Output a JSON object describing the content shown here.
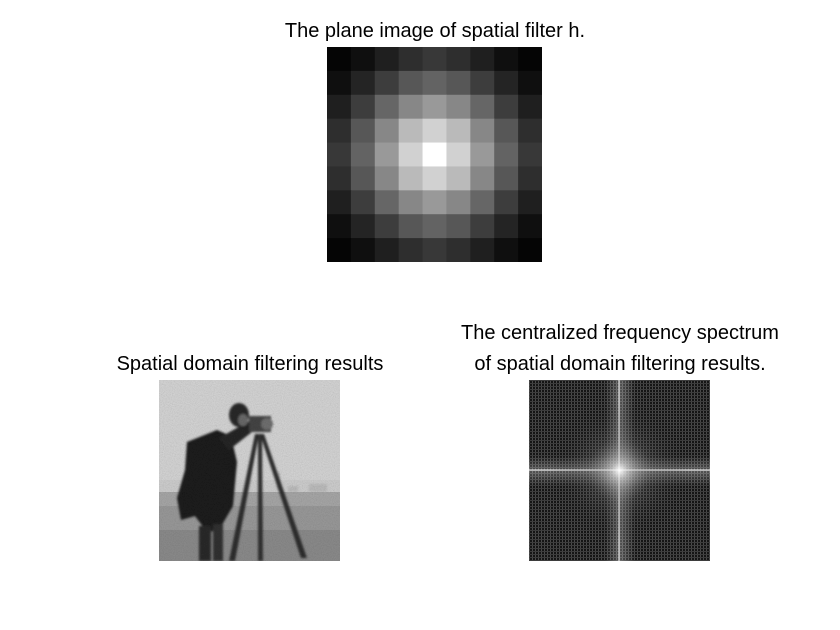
{
  "figure": {
    "panel1": {
      "title": "The plane image of spatial filter h.",
      "grid_size": 9,
      "kernel_values": [
        [
          0.02,
          0.06,
          0.12,
          0.18,
          0.22,
          0.18,
          0.12,
          0.06,
          0.02
        ],
        [
          0.06,
          0.14,
          0.24,
          0.34,
          0.39,
          0.34,
          0.24,
          0.14,
          0.06
        ],
        [
          0.12,
          0.24,
          0.4,
          0.53,
          0.6,
          0.53,
          0.4,
          0.24,
          0.12
        ],
        [
          0.18,
          0.34,
          0.53,
          0.73,
          0.82,
          0.73,
          0.53,
          0.34,
          0.18
        ],
        [
          0.22,
          0.39,
          0.6,
          0.82,
          1.0,
          0.82,
          0.6,
          0.39,
          0.22
        ],
        [
          0.18,
          0.34,
          0.53,
          0.73,
          0.82,
          0.73,
          0.53,
          0.34,
          0.18
        ],
        [
          0.12,
          0.24,
          0.4,
          0.53,
          0.6,
          0.53,
          0.4,
          0.24,
          0.12
        ],
        [
          0.06,
          0.14,
          0.24,
          0.34,
          0.39,
          0.34,
          0.24,
          0.14,
          0.06
        ],
        [
          0.02,
          0.06,
          0.12,
          0.18,
          0.22,
          0.18,
          0.12,
          0.06,
          0.02
        ]
      ]
    },
    "panel2": {
      "title": "Spatial domain filtering results"
    },
    "panel3": {
      "title_line1": "The centralized frequency spectrum",
      "title_line2": "of spatial domain filtering results."
    }
  }
}
